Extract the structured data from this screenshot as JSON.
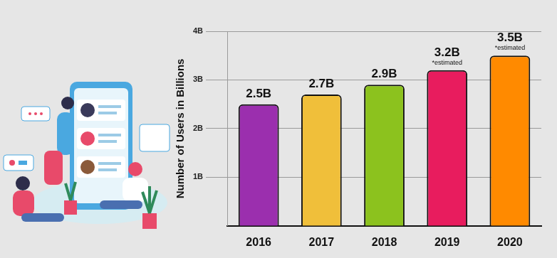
{
  "chart_data": {
    "type": "bar",
    "y_label": "Number of Users in Billions",
    "categories": [
      "2016",
      "2017",
      "2018",
      "2019",
      "2020"
    ],
    "values": [
      2.5,
      2.7,
      2.9,
      3.2,
      3.5
    ],
    "value_labels": [
      "2.5B",
      "2.7B",
      "2.9B",
      "3.2B",
      "3.5B"
    ],
    "colors": [
      "#9b2fae",
      "#f0bf3a",
      "#8cc21e",
      "#e81c5e",
      "#ff8a00"
    ],
    "ylim": [
      0,
      4
    ],
    "yticks": [
      {
        "value": 1,
        "label": "1B"
      },
      {
        "value": 2,
        "label": "2B"
      },
      {
        "value": 3,
        "label": "3B"
      },
      {
        "value": 4,
        "label": "4B"
      }
    ],
    "grid": true,
    "data_labels": true,
    "annotations": [
      {
        "category": "2019",
        "text": "*estimated"
      },
      {
        "category": "2020",
        "text": "*estimated"
      }
    ]
  }
}
